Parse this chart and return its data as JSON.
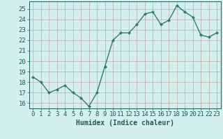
{
  "x": [
    0,
    1,
    2,
    3,
    4,
    5,
    6,
    7,
    8,
    9,
    10,
    11,
    12,
    13,
    14,
    15,
    16,
    17,
    18,
    19,
    20,
    21,
    22,
    23
  ],
  "y": [
    18.5,
    18.0,
    17.0,
    17.3,
    17.7,
    17.0,
    16.5,
    15.7,
    17.0,
    19.5,
    22.0,
    22.7,
    22.7,
    23.5,
    24.5,
    24.7,
    23.5,
    23.9,
    25.3,
    24.7,
    24.2,
    22.5,
    22.3,
    22.7
  ],
  "line_color": "#2d7d6e",
  "marker": "D",
  "markersize": 2.0,
  "linewidth": 1.0,
  "bg_color": "#d4f0ec",
  "grid_color": "#c0a8a8",
  "axis_label_color": "#1a5c54",
  "tick_color": "#1a5c54",
  "xlabel": "Humidex (Indice chaleur)",
  "xlim": [
    -0.5,
    23.5
  ],
  "ylim": [
    15.5,
    25.7
  ],
  "yticks": [
    16,
    17,
    18,
    19,
    20,
    21,
    22,
    23,
    24,
    25
  ],
  "xticks": [
    0,
    1,
    2,
    3,
    4,
    5,
    6,
    7,
    8,
    9,
    10,
    11,
    12,
    13,
    14,
    15,
    16,
    17,
    18,
    19,
    20,
    21,
    22,
    23
  ],
  "xlabel_fontsize": 7,
  "tick_fontsize": 6.5
}
